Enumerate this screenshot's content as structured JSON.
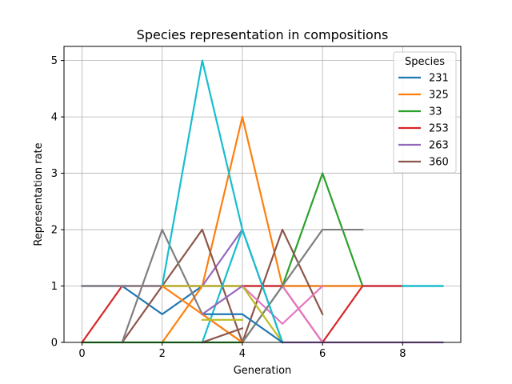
{
  "chart_data": {
    "type": "line",
    "title": "Species representation in compositions",
    "xlabel": "Generation",
    "ylabel": "Representation rate",
    "xlim": [
      -0.45,
      9.45
    ],
    "ylim": [
      0,
      5.25
    ],
    "xticks": [
      0,
      2,
      4,
      6,
      8
    ],
    "yticks": [
      0,
      1,
      2,
      3,
      4,
      5
    ],
    "grid": true,
    "legend": {
      "title": "Species",
      "placement": "top-right",
      "entries": [
        "231",
        "325",
        "33",
        "253",
        "263",
        "360"
      ]
    },
    "series": [
      {
        "name": "231",
        "color": "#1f77b4",
        "x": [
          0,
          1,
          2,
          3,
          4,
          5,
          6,
          7,
          8,
          9
        ],
        "y": [
          1,
          1,
          0.5,
          1,
          1,
          1,
          1,
          1,
          1,
          1
        ]
      },
      {
        "name": "325",
        "color": "#ff7f0e",
        "x": [
          2,
          3,
          4,
          5,
          6,
          7
        ],
        "y": [
          0,
          1,
          4,
          1,
          1,
          1
        ]
      },
      {
        "name": "33",
        "color": "#2ca02c",
        "x": [
          0,
          1,
          2,
          3,
          4,
          5,
          6,
          7
        ],
        "y": [
          0,
          0,
          0,
          0,
          0,
          1,
          3,
          1
        ]
      },
      {
        "name": "253",
        "color": "#d62728",
        "x": [
          0,
          1,
          2,
          3,
          4,
          5,
          6,
          7,
          8
        ],
        "y": [
          0,
          1,
          1,
          1,
          1,
          1,
          0,
          1,
          1
        ]
      },
      {
        "name": "263",
        "color": "#9467bd",
        "x": [
          0,
          1,
          2,
          3,
          4,
          5,
          6,
          7,
          8,
          9
        ],
        "y": [
          1,
          1,
          1,
          1,
          2,
          0,
          0,
          0,
          0,
          0
        ]
      },
      {
        "name": "360",
        "color": "#8c564b",
        "x": [
          1,
          2,
          3,
          4,
          5,
          6
        ],
        "y": [
          0,
          1,
          2,
          0,
          2,
          0.5
        ]
      },
      {
        "color": "#e377c2",
        "x": [
          0,
          1,
          2,
          3,
          4,
          5,
          6
        ],
        "y": [
          1,
          1,
          1,
          1,
          1,
          0.33,
          1
        ]
      },
      {
        "color": "#e377c2",
        "x": [
          5,
          6
        ],
        "y": [
          1,
          0
        ]
      },
      {
        "color": "#7f7f7f",
        "x": [
          1,
          2,
          3,
          4,
          5,
          6,
          7
        ],
        "y": [
          0,
          2,
          0.5,
          0,
          1,
          2,
          2
        ]
      },
      {
        "color": "#7f7f7f",
        "x": [
          0,
          1,
          2
        ],
        "y": [
          1,
          1,
          1
        ]
      },
      {
        "color": "#bcbd22",
        "x": [
          2,
          3,
          4,
          5
        ],
        "y": [
          1,
          1,
          1,
          0
        ]
      },
      {
        "color": "#17becf",
        "x": [
          2,
          3,
          4,
          5
        ],
        "y": [
          1,
          5,
          2,
          0
        ]
      },
      {
        "color": "#17becf",
        "x": [
          3,
          4
        ],
        "y": [
          0,
          2
        ]
      },
      {
        "color": "#17becf",
        "x": [
          8,
          9
        ],
        "y": [
          1,
          1
        ]
      },
      {
        "color": "#1f77b4",
        "x": [
          3,
          4,
          5
        ],
        "y": [
          0.5,
          0.5,
          0
        ]
      },
      {
        "color": "#ff7f0e",
        "x": [
          2,
          3,
          4
        ],
        "y": [
          1,
          0.5,
          0
        ]
      },
      {
        "color": "#bcbd22",
        "x": [
          3,
          4
        ],
        "y": [
          0.4,
          0.4
        ]
      },
      {
        "color": "#8c564b",
        "x": [
          3,
          4
        ],
        "y": [
          0,
          0.25
        ]
      },
      {
        "color": "#9467bd",
        "x": [
          3,
          4
        ],
        "y": [
          0.5,
          1
        ]
      }
    ]
  }
}
